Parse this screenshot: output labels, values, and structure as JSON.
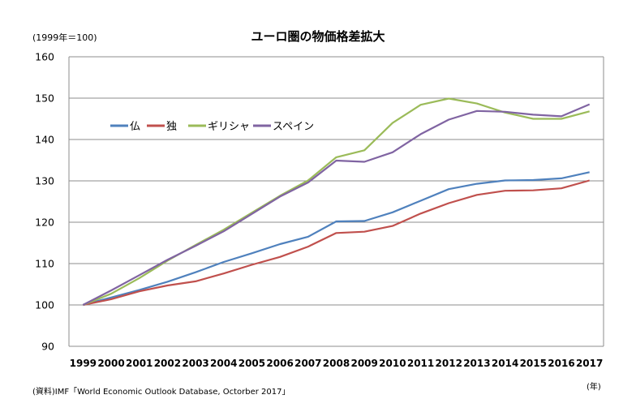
{
  "chart_data": {
    "type": "line",
    "title": "ユーロ圏の物価格差拡大",
    "unit_note": "(1999年＝100)",
    "x_unit": "(年)",
    "source": "(資料)IMF「World Economic Outlook Database, Octorber 2017」",
    "x": [
      "1999",
      "2000",
      "2001",
      "2002",
      "2003",
      "2004",
      "2005",
      "2006",
      "2007",
      "2008",
      "2009",
      "2010",
      "2011",
      "2012",
      "2013",
      "2014",
      "2015",
      "2016",
      "2017"
    ],
    "ylim": [
      90,
      160
    ],
    "yticks": [
      90,
      100,
      110,
      120,
      130,
      140,
      150,
      160
    ],
    "grid": true,
    "legend_position": "upper-left",
    "series": [
      {
        "name": "仏",
        "color": "#4f81bd",
        "values": [
          100,
          101.8,
          103.6,
          105.6,
          107.9,
          110.4,
          112.5,
          114.7,
          116.5,
          120.2,
          120.3,
          122.4,
          125.2,
          128.0,
          129.3,
          130.1,
          130.2,
          130.6,
          132.1
        ]
      },
      {
        "name": "独",
        "color": "#c0504d",
        "values": [
          100,
          101.4,
          103.3,
          104.7,
          105.7,
          107.6,
          109.7,
          111.6,
          114.1,
          117.4,
          117.7,
          119.1,
          122.1,
          124.6,
          126.6,
          127.6,
          127.7,
          128.2,
          130.1
        ]
      },
      {
        "name": "ギリシャ",
        "color": "#9bbb59",
        "values": [
          100,
          102.7,
          106.5,
          110.7,
          114.5,
          118.2,
          122.3,
          126.4,
          130.1,
          135.7,
          137.4,
          144.0,
          148.4,
          149.9,
          148.7,
          146.5,
          145.0,
          145.0,
          146.8
        ]
      },
      {
        "name": "スペイン",
        "color": "#8064a2",
        "values": [
          100,
          103.5,
          107.2,
          110.9,
          114.3,
          117.8,
          122.0,
          126.2,
          129.6,
          134.9,
          134.6,
          136.9,
          141.3,
          144.8,
          146.9,
          146.7,
          146.0,
          145.6,
          148.5
        ]
      }
    ]
  }
}
